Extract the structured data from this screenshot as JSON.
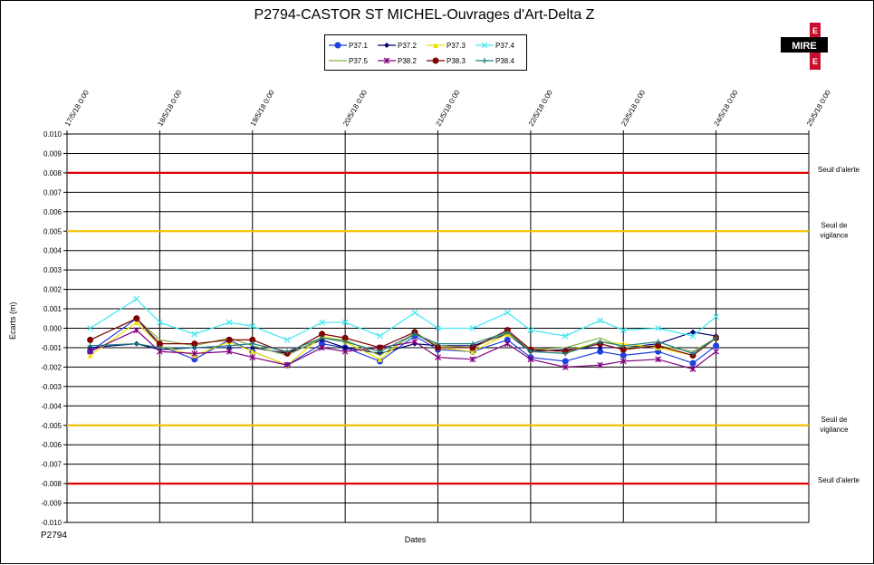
{
  "chart_data": {
    "type": "line",
    "title": "P2794-CASTOR ST MICHEL-Ouvrages d'Art-Delta Z",
    "xlabel": "Dates",
    "ylabel": "Ecarts (m)",
    "footer": "P2794",
    "logo_text": "MIRE",
    "ylim": [
      -0.01,
      0.01
    ],
    "yticks": [
      "0.010",
      "0.009",
      "0.008",
      "0.007",
      "0.006",
      "0.005",
      "0.004",
      "0.003",
      "0.002",
      "0.001",
      "0.000",
      "-0.001",
      "-0.002",
      "-0.003",
      "-0.004",
      "-0.005",
      "-0.006",
      "-0.007",
      "-0.008",
      "-0.009",
      "-0.010"
    ],
    "xticks": [
      "17/5/18 0:00",
      "18/5/18 0:00",
      "19/5/18 0:00",
      "20/5/18 0:00",
      "21/5/18 0:00",
      "22/5/18 0:00",
      "23/5/18 0:00",
      "24/5/18 0:00",
      "25/5/18 0:00"
    ],
    "grid": true,
    "legend_position": "top-center",
    "thresholds": [
      {
        "label": "Seuil d'alerte",
        "value": 0.008,
        "color": "#E00000"
      },
      {
        "label": "Seuil de vigilance",
        "value": 0.005,
        "color": "#F2C200"
      },
      {
        "label": "Seuil de vigilance",
        "value": -0.005,
        "color": "#F2C200"
      },
      {
        "label": "Seuil d'alerte",
        "value": -0.008,
        "color": "#E00000"
      }
    ],
    "x": [
      "17/5/18 6:00",
      "17/5/18 18:00",
      "18/5/18 0:00",
      "18/5/18 9:00",
      "18/5/18 18:00",
      "19/5/18 0:00",
      "19/5/18 9:00",
      "19/5/18 18:00",
      "20/5/18 0:00",
      "20/5/18 9:00",
      "20/5/18 18:00",
      "21/5/18 0:00",
      "21/5/18 9:00",
      "21/5/18 18:00",
      "22/5/18 0:00",
      "22/5/18 9:00",
      "22/5/18 18:00",
      "23/5/18 0:00",
      "23/5/18 9:00",
      "23/5/18 18:00",
      "24/5/18 0:00"
    ],
    "series": [
      {
        "name": "P37.1",
        "color": "#2040E0",
        "marker": "circle",
        "values": [
          -0.0012,
          0.0005,
          -0.0009,
          -0.0016,
          -0.0006,
          -0.0012,
          -0.0019,
          -0.0008,
          -0.001,
          -0.0017,
          -0.0004,
          -0.0011,
          -0.0012,
          -0.0006,
          -0.0015,
          -0.0017,
          -0.0012,
          -0.0014,
          -0.0012,
          -0.0018,
          -0.0009
        ]
      },
      {
        "name": "P37.2",
        "color": "#000070",
        "marker": "diamond",
        "values": [
          -0.001,
          -0.0008,
          -0.0011,
          -0.001,
          -0.001,
          -0.001,
          -0.0013,
          -0.0006,
          -0.001,
          -0.0013,
          -0.0008,
          -0.0009,
          -0.0009,
          -0.0003,
          -0.0012,
          -0.0011,
          -0.001,
          -0.001,
          -0.0008,
          -0.0002,
          -0.0004
        ]
      },
      {
        "name": "P37.3",
        "color": "#F0E000",
        "marker": "triangle",
        "values": [
          -0.0014,
          0.0003,
          -0.0009,
          -0.0014,
          -0.0007,
          -0.0012,
          -0.0019,
          -0.0004,
          -0.0007,
          -0.0016,
          -0.0002,
          -0.001,
          -0.0012,
          -0.0003,
          -0.0011,
          -0.0012,
          -0.0007,
          -0.0008,
          -0.001,
          -0.0014,
          -0.0005
        ]
      },
      {
        "name": "P37.4",
        "color": "#40E8F0",
        "marker": "x",
        "values": [
          0.0,
          0.0015,
          0.0003,
          -0.0003,
          0.0003,
          0.0001,
          -0.0006,
          0.0003,
          0.0003,
          -0.0004,
          0.0008,
          0.0,
          0.0,
          0.0008,
          -0.0001,
          -0.0004,
          0.0004,
          -0.0001,
          0.0,
          -0.0004,
          0.0006
        ]
      },
      {
        "name": "P37.5",
        "color": "#80B040",
        "marker": "none",
        "values": [
          -0.0006,
          0.0005,
          -0.0006,
          -0.0009,
          -0.0005,
          -0.0009,
          -0.0014,
          -0.0005,
          -0.0006,
          -0.0014,
          -0.0003,
          -0.0009,
          -0.001,
          -0.0002,
          -0.0011,
          -0.001,
          -0.0005,
          -0.001,
          -0.0009,
          -0.0012,
          -0.0005
        ]
      },
      {
        "name": "P38.2",
        "color": "#800080",
        "marker": "star",
        "values": [
          -0.0012,
          -0.0001,
          -0.0012,
          -0.0013,
          -0.0012,
          -0.0015,
          -0.0019,
          -0.001,
          -0.0012,
          -0.001,
          -0.0007,
          -0.0015,
          -0.0016,
          -0.0008,
          -0.0016,
          -0.002,
          -0.0019,
          -0.0017,
          -0.0016,
          -0.0021,
          -0.0012
        ]
      },
      {
        "name": "P38.3",
        "color": "#800000",
        "marker": "circle",
        "values": [
          -0.0006,
          0.0005,
          -0.0008,
          -0.0008,
          -0.0006,
          -0.0006,
          -0.0013,
          -0.0003,
          -0.0005,
          -0.001,
          -0.0002,
          -0.001,
          -0.001,
          -0.0001,
          -0.0011,
          -0.0012,
          -0.0008,
          -0.0011,
          -0.0009,
          -0.0014,
          -0.0005
        ]
      },
      {
        "name": "P38.4",
        "color": "#208080",
        "marker": "plus",
        "values": [
          -0.0009,
          -0.0008,
          -0.001,
          -0.001,
          -0.0009,
          -0.0008,
          -0.0012,
          -0.0005,
          -0.0007,
          -0.0012,
          -0.0003,
          -0.0008,
          -0.0008,
          -0.0002,
          -0.0012,
          -0.0013,
          -0.0007,
          -0.0009,
          -0.0007,
          -0.0013,
          -0.0005
        ]
      }
    ]
  }
}
